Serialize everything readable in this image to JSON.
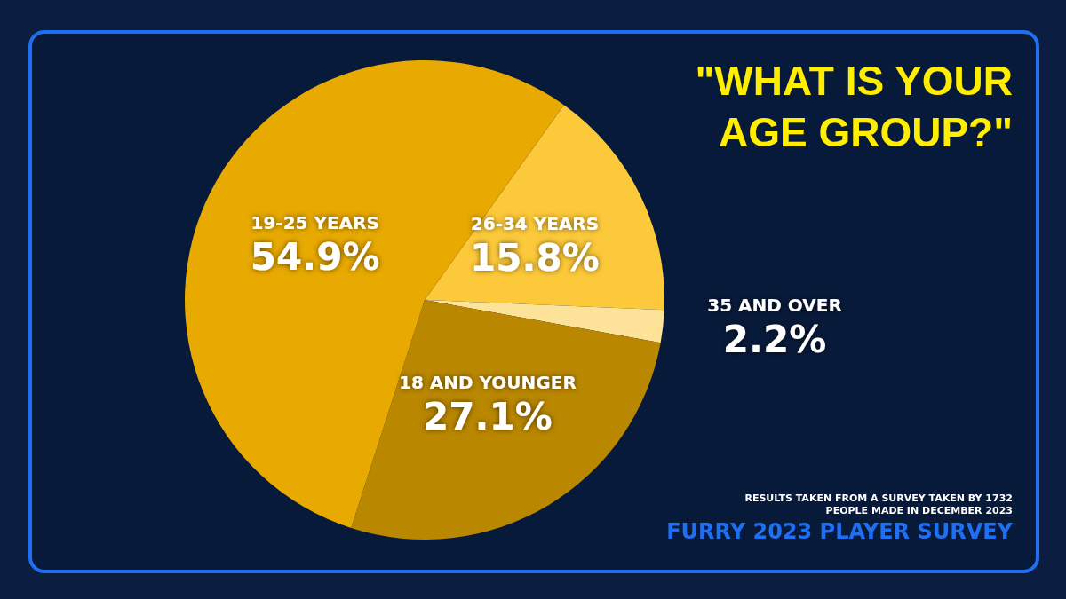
{
  "chart_data": {
    "type": "pie",
    "title": "\"WHAT IS YOUR AGE GROUP?\"",
    "categories": [
      "26-34 YEARS",
      "35 AND OVER",
      "18 AND YOUNGER",
      "19-25 YEARS"
    ],
    "values": [
      15.8,
      2.2,
      27.1,
      54.9
    ],
    "colors": [
      "#fcc93a",
      "#fde39a",
      "#b98700",
      "#e8a900"
    ],
    "value_labels": [
      "15.8%",
      "2.2%",
      "27.1%",
      "54.9%"
    ],
    "legend": false,
    "annotations": [
      "RESULTS TAKEN FROM A SURVEY TAKEN BY 1732",
      "PEOPLE MADE IN DECEMBER 2023",
      "FURRY 2023 PLAYER SURVEY"
    ]
  }
}
